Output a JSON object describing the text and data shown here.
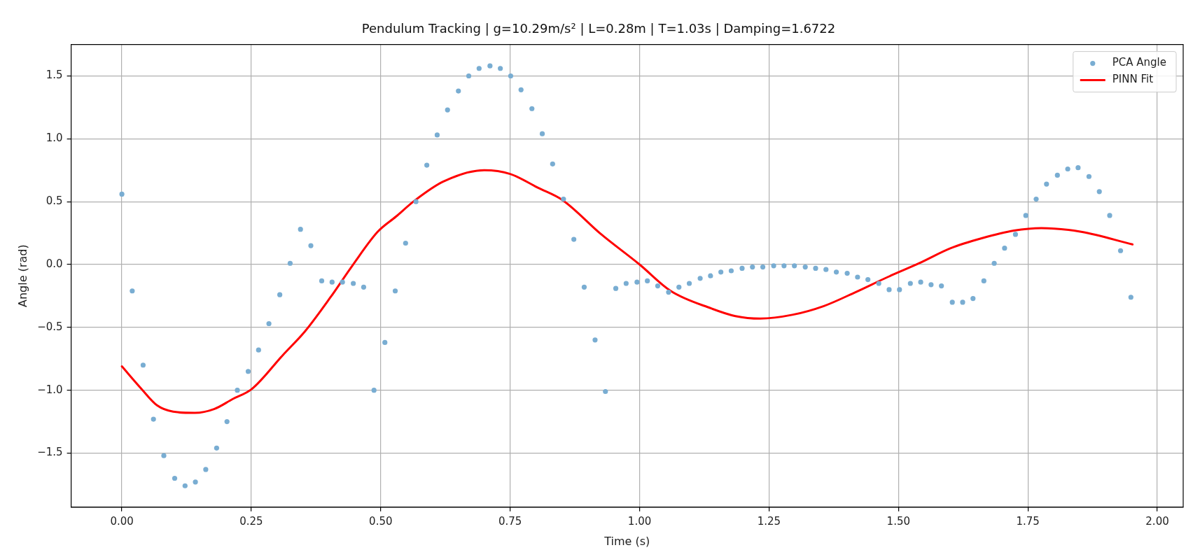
{
  "chart_data": {
    "type": "scatter",
    "title": "Pendulum Tracking | g=10.29m/s² | L=0.28m | T=1.03s | Damping=1.6722",
    "xlabel": "Time (s)",
    "ylabel": "Angle (rad)",
    "xlim": [
      -0.098,
      2.05
    ],
    "xticks": [
      {
        "value": 0,
        "label": "0.00"
      },
      {
        "value": 0.25,
        "label": "0.25"
      },
      {
        "value": 0.5,
        "label": "0.50"
      },
      {
        "value": 0.75,
        "label": "0.75"
      },
      {
        "value": 1,
        "label": "1.00"
      },
      {
        "value": 1.25,
        "label": "1.25"
      },
      {
        "value": 1.5,
        "label": "1.50"
      },
      {
        "value": 1.75,
        "label": "1.75"
      },
      {
        "value": 2,
        "label": "2.00"
      }
    ],
    "ylim": [
      -1.93,
      1.75
    ],
    "yticks": [
      {
        "value": -1.5,
        "label": "−1.5"
      },
      {
        "value": -1,
        "label": "−1.0"
      },
      {
        "value": -0.5,
        "label": "−0.5"
      },
      {
        "value": 0,
        "label": "0.0"
      },
      {
        "value": 0.5,
        "label": "0.5"
      },
      {
        "value": 1,
        "label": "1.0"
      },
      {
        "value": 1.5,
        "label": "1.5"
      }
    ],
    "grid": true,
    "legend": "top right",
    "series": [
      {
        "name": "PCA Angle",
        "type": "scatter",
        "marker": "circle",
        "color": "#79add2",
        "x": [
          0,
          0.02,
          0.041,
          0.061,
          0.081,
          0.102,
          0.122,
          0.142,
          0.162,
          0.183,
          0.203,
          0.223,
          0.244,
          0.264,
          0.284,
          0.305,
          0.325,
          0.345,
          0.365,
          0.386,
          0.406,
          0.426,
          0.447,
          0.467,
          0.487,
          0.508,
          0.528,
          0.548,
          0.568,
          0.589,
          0.609,
          0.629,
          0.65,
          0.67,
          0.69,
          0.711,
          0.731,
          0.751,
          0.771,
          0.792,
          0.812,
          0.832,
          0.853,
          0.873,
          0.893,
          0.914,
          0.934,
          0.954,
          0.974,
          0.995,
          1.015,
          1.035,
          1.056,
          1.076,
          1.096,
          1.117,
          1.137,
          1.157,
          1.177,
          1.198,
          1.218,
          1.238,
          1.259,
          1.279,
          1.299,
          1.32,
          1.34,
          1.36,
          1.38,
          1.401,
          1.421,
          1.441,
          1.462,
          1.482,
          1.502,
          1.523,
          1.543,
          1.563,
          1.583,
          1.604,
          1.624,
          1.644,
          1.665,
          1.685,
          1.705,
          1.726,
          1.746,
          1.766,
          1.786,
          1.807,
          1.827,
          1.847,
          1.868,
          1.888,
          1.908,
          1.929,
          1.949
        ],
        "values": [
          0.56,
          -0.21,
          -0.8,
          -1.23,
          -1.52,
          -1.7,
          -1.76,
          -1.73,
          -1.63,
          -1.46,
          -1.25,
          -1.0,
          -0.85,
          -0.68,
          -0.47,
          -0.24,
          0.01,
          0.28,
          0.15,
          -0.13,
          -0.14,
          -0.14,
          -0.15,
          -0.18,
          -1.0,
          -0.62,
          -0.21,
          0.17,
          0.5,
          0.79,
          1.03,
          1.23,
          1.38,
          1.5,
          1.56,
          1.58,
          1.56,
          1.5,
          1.39,
          1.24,
          1.04,
          0.8,
          0.52,
          0.2,
          -0.18,
          -0.6,
          -1.01,
          -0.19,
          -0.15,
          -0.14,
          -0.13,
          -0.17,
          -0.22,
          -0.18,
          -0.15,
          -0.11,
          -0.09,
          -0.06,
          -0.05,
          -0.03,
          -0.02,
          -0.02,
          -0.01,
          -0.01,
          -0.01,
          -0.02,
          -0.03,
          -0.04,
          -0.06,
          -0.07,
          -0.1,
          -0.12,
          -0.15,
          -0.2,
          -0.2,
          -0.15,
          -0.14,
          -0.16,
          -0.17,
          -0.3,
          -0.3,
          -0.27,
          -0.13,
          0.01,
          0.13,
          0.24,
          0.39,
          0.52,
          0.64,
          0.71,
          0.76,
          0.77,
          0.7,
          0.58,
          0.39,
          0.11,
          -0.26
        ]
      },
      {
        "name": "PINN Fit",
        "type": "line",
        "marker": "none",
        "color": "#ff0000",
        "x": [
          0,
          0.038,
          0.068,
          0.099,
          0.141,
          0.178,
          0.214,
          0.251,
          0.311,
          0.354,
          0.403,
          0.445,
          0.494,
          0.529,
          0.566,
          0.621,
          0.7,
          0.75,
          0.804,
          0.852,
          0.926,
          1.0,
          1.06,
          1.139,
          1.185,
          1.233,
          1.295,
          1.356,
          1.417,
          1.479,
          1.54,
          1.601,
          1.662,
          1.723,
          1.776,
          1.853,
          1.952
        ],
        "values": [
          -0.81,
          -0.99,
          -1.12,
          -1.17,
          -1.18,
          -1.15,
          -1.07,
          -0.99,
          -0.72,
          -0.53,
          -0.26,
          -0.01,
          0.26,
          0.38,
          0.51,
          0.66,
          0.75,
          0.72,
          0.61,
          0.51,
          0.24,
          0.0,
          -0.21,
          -0.35,
          -0.41,
          -0.43,
          -0.4,
          -0.33,
          -0.22,
          -0.1,
          0.01,
          0.13,
          0.21,
          0.27,
          0.29,
          0.26,
          0.16
        ]
      }
    ]
  }
}
